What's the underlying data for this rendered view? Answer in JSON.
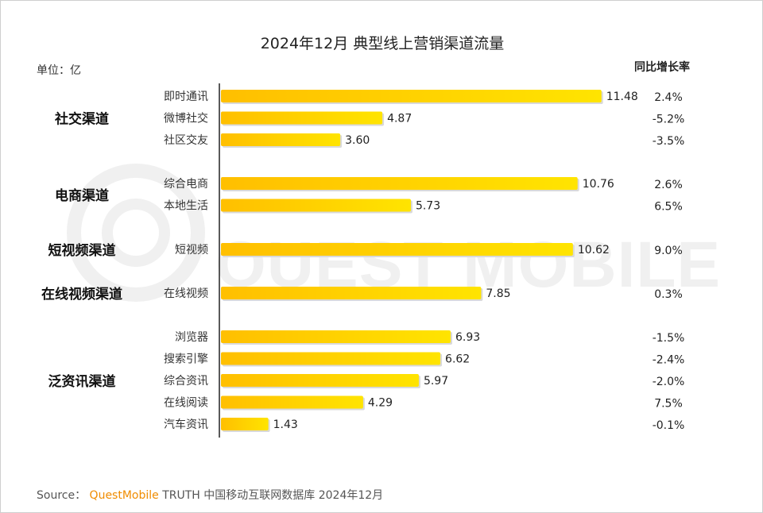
{
  "chart_data": {
    "type": "bar",
    "orientation": "horizontal",
    "title": "2024年12月 典型线上营销渠道流量",
    "unit_label": "单位：亿",
    "yoy_header": "同比增长率",
    "watermark": "QUEST MOBILE",
    "xlim": [
      0,
      12
    ],
    "groups": [
      {
        "name": "社交渠道",
        "items": [
          {
            "label": "即时通讯",
            "value": 11.48,
            "value_label": "11.48",
            "yoy": "2.4%"
          },
          {
            "label": "微博社交",
            "value": 4.87,
            "value_label": "4.87",
            "yoy": "-5.2%"
          },
          {
            "label": "社区交友",
            "value": 3.6,
            "value_label": "3.60",
            "yoy": "-3.5%"
          }
        ]
      },
      {
        "name": "电商渠道",
        "items": [
          {
            "label": "综合电商",
            "value": 10.76,
            "value_label": "10.76",
            "yoy": "2.6%"
          },
          {
            "label": "本地生活",
            "value": 5.73,
            "value_label": "5.73",
            "yoy": "6.5%"
          }
        ]
      },
      {
        "name": "短视频渠道",
        "items": [
          {
            "label": "短视频",
            "value": 10.62,
            "value_label": "10.62",
            "yoy": "9.0%"
          }
        ]
      },
      {
        "name": "在线视频渠道",
        "items": [
          {
            "label": "在线视频",
            "value": 7.85,
            "value_label": "7.85",
            "yoy": "0.3%"
          }
        ]
      },
      {
        "name": "泛资讯渠道",
        "items": [
          {
            "label": "浏览器",
            "value": 6.93,
            "value_label": "6.93",
            "yoy": "-1.5%"
          },
          {
            "label": "搜索引擎",
            "value": 6.62,
            "value_label": "6.62",
            "yoy": "-2.4%"
          },
          {
            "label": "综合资讯",
            "value": 5.97,
            "value_label": "5.97",
            "yoy": "-2.0%"
          },
          {
            "label": "在线阅读",
            "value": 4.29,
            "value_label": "4.29",
            "yoy": "7.5%"
          },
          {
            "label": "汽车资讯",
            "value": 1.43,
            "value_label": "1.43",
            "yoy": "-0.1%"
          }
        ]
      }
    ]
  },
  "source": {
    "prefix": "Source：",
    "brand": "QuestMobile",
    "rest": " TRUTH 中国移动互联网数据库 2024年12月"
  },
  "colors": {
    "bar_start": "#ffbf00",
    "bar_end": "#ffe400",
    "brand": "#f08c00",
    "text": "#333333",
    "axis": "#222222",
    "watermark": "#f0f0f0"
  }
}
